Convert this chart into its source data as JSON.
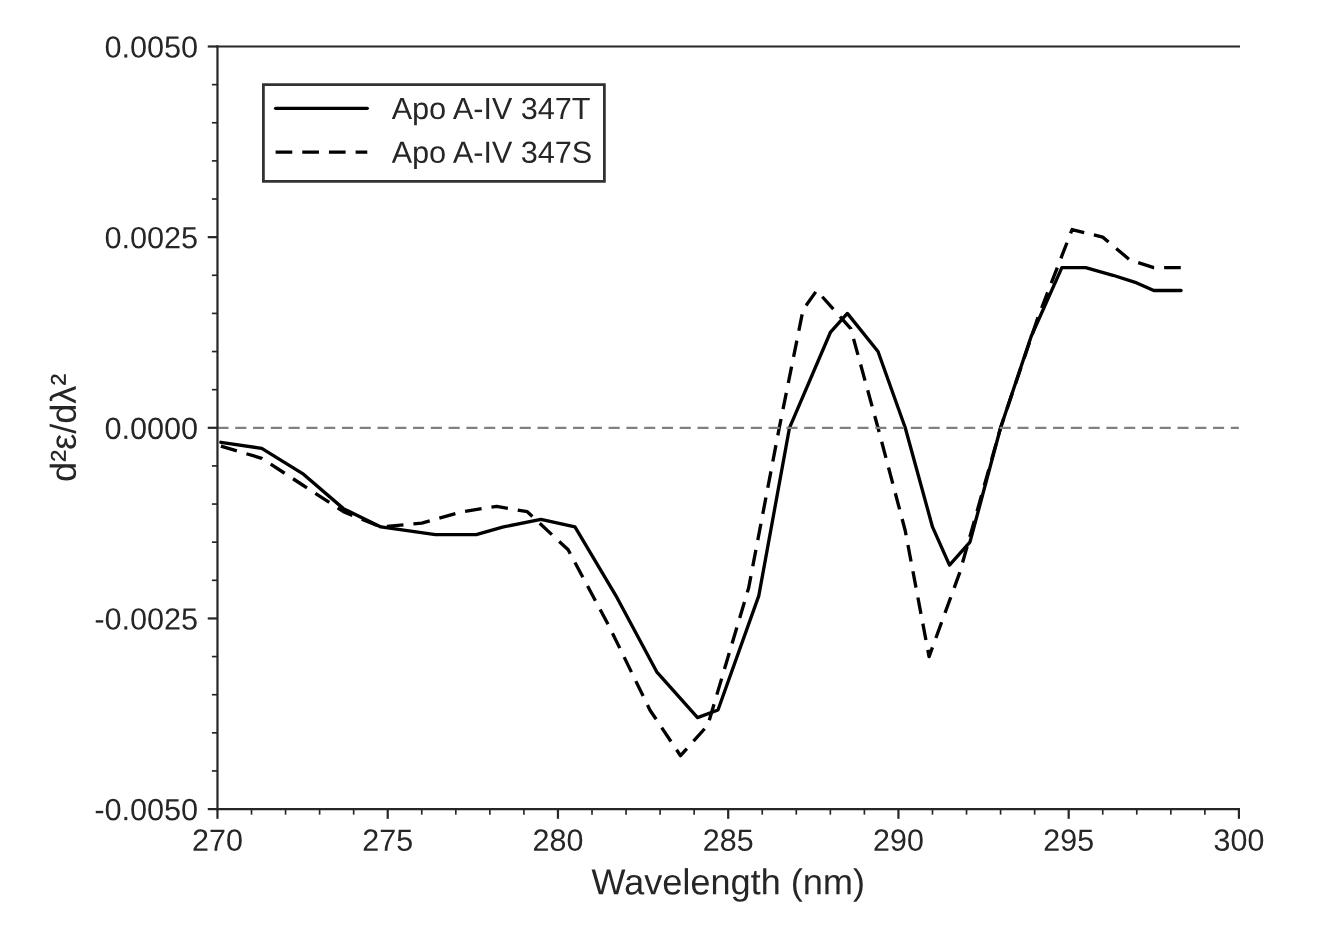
{
  "chart_data": {
    "type": "line",
    "xlabel": "Wavelength (nm)",
    "ylabel": "d²ε/dλ²",
    "xlim": [
      270,
      300
    ],
    "xticks": [
      270,
      275,
      280,
      285,
      290,
      295,
      300
    ],
    "ylim": [
      -0.005,
      0.005
    ],
    "yticks": [
      {
        "value": -0.005,
        "label": "-0.0050"
      },
      {
        "value": -0.0025,
        "label": "-0.0025"
      },
      {
        "value": 0,
        "label": "0.0000"
      },
      {
        "value": 0.0025,
        "label": "0.0025"
      },
      {
        "value": 0.005,
        "label": "0.0050"
      }
    ],
    "legend": "top left",
    "grid": false,
    "ref_lines": [
      {
        "axis": "y",
        "value": 0,
        "color": "#808080",
        "line_style": "dashed"
      }
    ],
    "series": [
      {
        "name": "Apo A-IV 347T",
        "color": "#000000",
        "line_style": "solid",
        "x": [
          270.1,
          271.3,
          272.5,
          273.7,
          274.8,
          276.4,
          277.6,
          278.4,
          279.5,
          280.5,
          281.7,
          282.9,
          284.1,
          284.7,
          285.9,
          286.8,
          288.0,
          288.5,
          289.4,
          290.2,
          291.0,
          291.5,
          292.1,
          293.0,
          293.9,
          294.8,
          295.5,
          296.3,
          297.0,
          297.5,
          298.3
        ],
        "values": [
          -0.00019,
          -0.00027,
          -0.0006,
          -0.00106,
          -0.0013,
          -0.0014,
          -0.0014,
          -0.0013,
          -0.0012,
          -0.0013,
          -0.0022,
          -0.0032,
          -0.0038,
          -0.0037,
          -0.0022,
          0.0,
          0.00125,
          0.0015,
          0.001,
          0.0,
          -0.0013,
          -0.0018,
          -0.0015,
          0.0,
          0.0012,
          0.0021,
          0.0021,
          0.002,
          0.0019,
          0.0018,
          0.0018
        ]
      },
      {
        "name": "Apo A-IV 347S",
        "color": "#000000",
        "line_style": "dashed",
        "x": [
          270.1,
          271.3,
          272.5,
          273.7,
          274.8,
          276.0,
          277.2,
          278.2,
          279.1,
          280.3,
          281.5,
          282.7,
          283.6,
          284.4,
          285.6,
          286.5,
          287.2,
          287.6,
          288.6,
          289.4,
          290.2,
          290.9,
          291.8,
          293.0,
          294.1,
          295.1,
          296.0,
          296.8,
          297.5,
          298.3
        ],
        "values": [
          -0.00024,
          -0.0004,
          -0.00075,
          -0.0011,
          -0.0013,
          -0.00125,
          -0.0011,
          -0.00103,
          -0.0011,
          -0.0016,
          -0.0026,
          -0.0037,
          -0.0043,
          -0.0039,
          -0.0021,
          0.0,
          0.00155,
          0.0018,
          0.0013,
          0.0,
          -0.00135,
          -0.003,
          -0.0019,
          0.0,
          0.00145,
          0.0026,
          0.0025,
          0.0022,
          0.0021,
          0.0021
        ]
      }
    ]
  }
}
